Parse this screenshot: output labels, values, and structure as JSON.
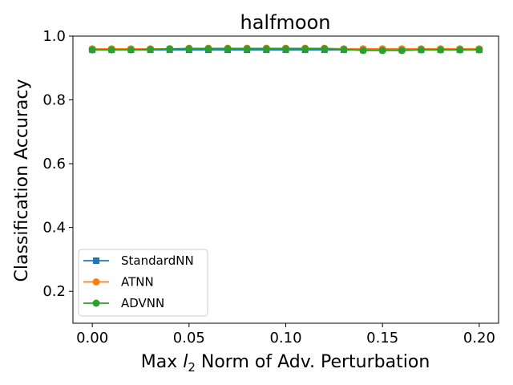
{
  "chart_data": {
    "type": "line",
    "title": "halfmoon",
    "xlabel_prefix": "Max ",
    "xlabel_italic": "l",
    "xlabel_sub": "2",
    "xlabel_suffix": " Norm of Adv. Perturbation",
    "ylabel": "Classification Accuracy",
    "xlim": [
      -0.01,
      0.21
    ],
    "ylim": [
      0.1,
      1.0
    ],
    "xticks": [
      0.0,
      0.05,
      0.1,
      0.15,
      0.2
    ],
    "xtick_labels": [
      "0.00",
      "0.05",
      "0.10",
      "0.15",
      "0.20"
    ],
    "yticks": [
      0.2,
      0.4,
      0.6,
      0.8,
      1.0
    ],
    "ytick_labels": [
      "0.2",
      "0.4",
      "0.6",
      "0.8",
      "1.0"
    ],
    "legend_position": "lower-left",
    "x": [
      0.0,
      0.01,
      0.02,
      0.03,
      0.04,
      0.05,
      0.06,
      0.07,
      0.08,
      0.09,
      0.1,
      0.11,
      0.12,
      0.13,
      0.14,
      0.15,
      0.16,
      0.17,
      0.18,
      0.19,
      0.2
    ],
    "series": [
      {
        "name": "StandardNN",
        "color": "#1f77b4",
        "marker": "square",
        "values": [
          0.957,
          0.957,
          0.957,
          0.957,
          0.957,
          0.957,
          0.957,
          0.957,
          0.957,
          0.957,
          0.957,
          0.957,
          0.957,
          0.957,
          0.957,
          0.957,
          0.957,
          0.957,
          0.957,
          0.957,
          0.957
        ]
      },
      {
        "name": "ATNN",
        "color": "#ff7f0e",
        "marker": "circle",
        "values": [
          0.96,
          0.96,
          0.96,
          0.96,
          0.96,
          0.962,
          0.962,
          0.962,
          0.962,
          0.962,
          0.962,
          0.962,
          0.962,
          0.96,
          0.96,
          0.96,
          0.96,
          0.96,
          0.96,
          0.96,
          0.96
        ]
      },
      {
        "name": "ADVNN",
        "color": "#2ca02c",
        "marker": "circle",
        "values": [
          0.957,
          0.957,
          0.957,
          0.958,
          0.96,
          0.96,
          0.96,
          0.96,
          0.96,
          0.96,
          0.96,
          0.96,
          0.96,
          0.958,
          0.955,
          0.955,
          0.955,
          0.957,
          0.957,
          0.957,
          0.957
        ]
      }
    ]
  }
}
